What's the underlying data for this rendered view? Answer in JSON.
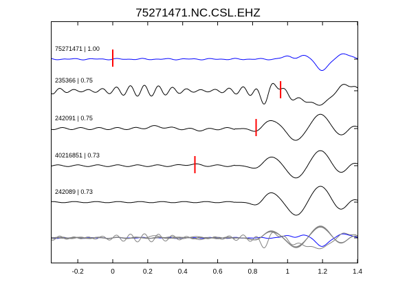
{
  "chart_data": {
    "type": "line",
    "title": "75271471.NC.CSL.EHZ",
    "xlabel": "",
    "ylabel": "",
    "xlim": [
      -0.35,
      1.4
    ],
    "x_ticks": [
      "-0.2",
      "0",
      "0.2",
      "0.4",
      "0.6",
      "0.8",
      "1",
      "1.2",
      "1.4"
    ],
    "x_tick_values": [
      -0.2,
      0,
      0.2,
      0.4,
      0.6,
      0.8,
      1.0,
      1.2,
      1.4
    ],
    "grid": false,
    "legend": "none",
    "colors": {
      "master": "#0000ff",
      "trace": "#000000",
      "overlay": "#808080",
      "pick": "#ff0000"
    },
    "series": [
      {
        "label": "75271471 | 1.00",
        "pick": 0.0,
        "kind": "master"
      },
      {
        "label": "235366 | 0.75",
        "pick": 0.96,
        "kind": "trace"
      },
      {
        "label": "242091 | 0.75",
        "pick": 0.82,
        "kind": "trace"
      },
      {
        "label": "40216851 | 0.73",
        "pick": 0.47,
        "kind": "trace"
      },
      {
        "label": "242089 | 0.73",
        "pick": null,
        "kind": "trace"
      }
    ]
  }
}
